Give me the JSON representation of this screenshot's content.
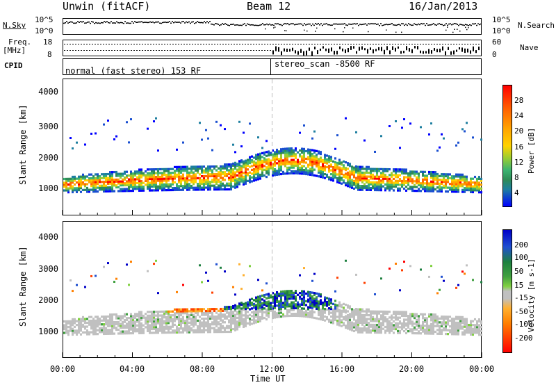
{
  "header": {
    "radar": "Unwin (fitACF)",
    "beam": "Beam 12",
    "date": "16/Jan/2013"
  },
  "top_panels": {
    "nsky_label": "N.Sky",
    "nsky_ticks": [
      "10^5",
      "10^0"
    ],
    "nsearch_label": "N.Search",
    "nsearch_ticks": [
      "10^5",
      "10^0"
    ],
    "freq_label_line1": "Freq.",
    "freq_label_line2": "[MHz]",
    "freq_ticks": [
      "18",
      "8"
    ],
    "nave_label": "Nave",
    "nave_ticks": [
      "60",
      "0"
    ],
    "cpid_label": "CPID",
    "cpid_mode_1": "normal (fast stereo) 153 RF",
    "cpid_mode_2": "stereo_scan -8500 RF"
  },
  "power_colorbar": {
    "label": "Power [dB]",
    "ticks": [
      "28",
      "24",
      "20",
      "16",
      "12",
      "8",
      "4"
    ],
    "colors": [
      "#ff0000",
      "#ff6a00",
      "#ffa500",
      "#ffd200",
      "#9acd32",
      "#3cb371",
      "#2e8b57",
      "#1e7fa0",
      "#1a4fd0",
      "#0000ff"
    ]
  },
  "velocity_colorbar": {
    "label": "Velocity [m s-1]",
    "ticks": [
      "200",
      "100",
      "50",
      "15",
      "-15",
      "-50",
      "-100",
      "-200"
    ],
    "colors": [
      "#0000c8",
      "#2050d0",
      "#1e8040",
      "#40a040",
      "#80d040",
      "#c0c0c0",
      "#ffb030",
      "#ff8000",
      "#ff4000",
      "#ff0000"
    ]
  },
  "chart_data": [
    {
      "type": "heatmap",
      "name": "Power",
      "ylabel": "Slant Range [km]",
      "ylim": [
        200,
        4500
      ],
      "yticks": [
        "4000",
        "3000",
        "2000",
        "1000"
      ],
      "xlim": [
        "00:00",
        "24:00"
      ],
      "quantity": "Power [dB]",
      "range": [
        0,
        30
      ]
    },
    {
      "type": "heatmap",
      "name": "Velocity",
      "ylabel": "Slant Range [km]",
      "ylim": [
        200,
        4500
      ],
      "yticks": [
        "4000",
        "3000",
        "2000",
        "1000"
      ],
      "xlim": [
        "00:00",
        "24:00"
      ],
      "quantity": "Velocity [m s-1]",
      "range": [
        -200,
        200
      ]
    }
  ],
  "x_axis": {
    "label": "Time UT",
    "ticks": [
      "00:00",
      "04:00",
      "08:00",
      "12:00",
      "16:00",
      "20:00",
      "00:00"
    ]
  }
}
